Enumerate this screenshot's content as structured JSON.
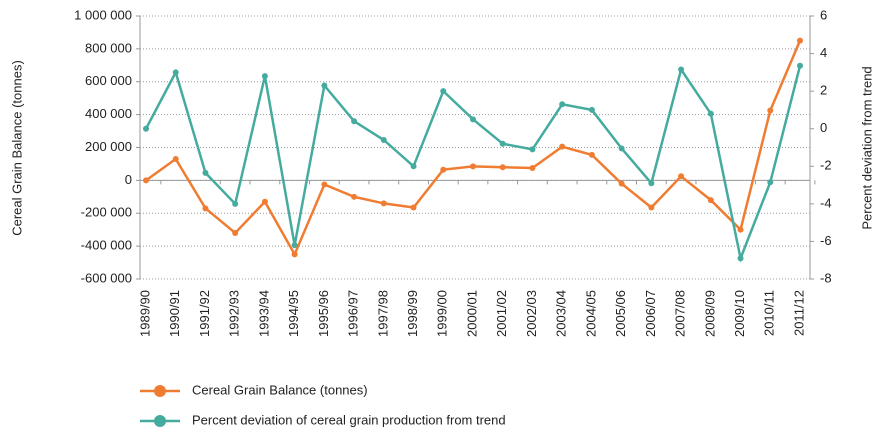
{
  "chart_data": {
    "type": "line",
    "categories": [
      "1989/90",
      "1990/91",
      "1991/92",
      "1992/93",
      "1993/94",
      "1994/95",
      "1995/96",
      "1996/97",
      "1997/98",
      "1998/99",
      "1999/00",
      "2000/01",
      "2001/02",
      "2002/03",
      "2003/04",
      "2004/05",
      "2005/06",
      "2006/07",
      "2007/08",
      "2008/09",
      "2009/10",
      "2010/11",
      "2011/12"
    ],
    "ylabel": "Cereal Grain Balance (tonnes)",
    "y2label": "Percent deviation from trend",
    "ylim": [
      -600000,
      1000000
    ],
    "yticks": [
      {
        "value": -600000,
        "label": "-600 000"
      },
      {
        "value": -400000,
        "label": "-400 000"
      },
      {
        "value": -200000,
        "label": "-200 000"
      },
      0,
      {
        "value": 200000,
        "label": "200 000"
      },
      {
        "value": 400000,
        "label": "400 000"
      },
      {
        "value": 600000,
        "label": "600 000"
      },
      {
        "value": 800000,
        "label": "800 000"
      },
      {
        "value": 1000000,
        "label": "1 000 000"
      }
    ],
    "y2lim": [
      -8,
      6
    ],
    "y2ticks": [
      -8,
      -6,
      -4,
      -2,
      0,
      2,
      4,
      6
    ],
    "grid": true,
    "series": [
      {
        "name": "Cereal Grain Balance (tonnes)",
        "color": "#f07c32",
        "values": [
          0,
          130000,
          -170000,
          -320000,
          -130000,
          -450000,
          -25000,
          -100000,
          -140000,
          -165000,
          65000,
          85000,
          80000,
          75000,
          205000,
          155000,
          -20000,
          -165000,
          25000,
          -120000,
          -300000,
          425000,
          850000
        ]
      },
      {
        "name": "Percent deviation of cereal grain production from trend",
        "color": "#45ab9f",
        "axis": "y2",
        "values": [
          0,
          3.0,
          -2.35,
          -4.0,
          2.8,
          -6.2,
          2.3,
          0.4,
          -0.6,
          -2.0,
          2.0,
          0.5,
          -0.8,
          -1.1,
          1.3,
          1.0,
          -1.05,
          -2.9,
          3.15,
          0.8,
          -6.9,
          -2.85,
          3.35
        ]
      }
    ]
  }
}
